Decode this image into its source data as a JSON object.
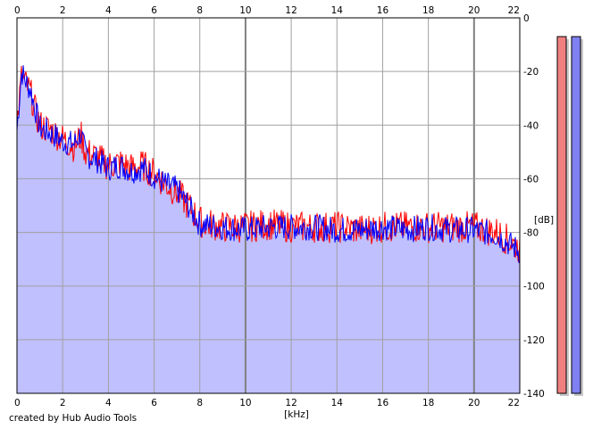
{
  "chart_data": {
    "type": "area",
    "xlabel": "[kHz]",
    "ylabel": "[dB]",
    "xlim": [
      0,
      22
    ],
    "ylim": [
      -140,
      0
    ],
    "x_ticks": [
      0,
      2,
      4,
      6,
      8,
      10,
      12,
      14,
      16,
      18,
      20,
      22
    ],
    "y_ticks": [
      0,
      -20,
      -40,
      -60,
      -80,
      -100,
      -120,
      -140
    ],
    "y_tick_labels": [
      "0",
      "-20",
      "-40",
      "-60",
      "-80",
      "-100",
      "-120",
      "-140"
    ],
    "grid": true,
    "fill_color": "#c0c0ff",
    "series": [
      {
        "color": "#ff0000",
        "x": [
          0,
          0.2,
          0.4,
          0.6,
          0.8,
          1,
          1.5,
          2,
          2.5,
          2.8,
          3,
          3.5,
          4,
          4.5,
          5,
          5.5,
          6,
          6.5,
          7,
          7.5,
          8,
          9,
          10,
          11,
          12,
          13,
          14,
          15,
          16,
          17,
          18,
          19,
          20,
          21,
          22
        ],
        "values": [
          -40,
          -22,
          -25,
          -28,
          -35,
          -40,
          -42,
          -45,
          -48,
          -44,
          -50,
          -52,
          -55,
          -54,
          -56,
          -55,
          -58,
          -62,
          -65,
          -70,
          -76,
          -78,
          -78,
          -77,
          -78,
          -78,
          -78,
          -79,
          -78,
          -78,
          -78,
          -78,
          -78,
          -80,
          -86
        ]
      },
      {
        "color": "#0000ff",
        "x": [
          0,
          0.2,
          0.4,
          0.6,
          0.8,
          1,
          1.5,
          2,
          2.5,
          2.8,
          3,
          3.5,
          4,
          4.5,
          5,
          5.5,
          6,
          6.5,
          7,
          7.5,
          8,
          9,
          10,
          11,
          12,
          13,
          14,
          15,
          16,
          17,
          18,
          19,
          20,
          21,
          22
        ],
        "values": [
          -42,
          -20,
          -24,
          -27,
          -34,
          -41,
          -43,
          -46,
          -47,
          -43,
          -51,
          -53,
          -56,
          -55,
          -57,
          -56,
          -59,
          -62,
          -64,
          -70,
          -77,
          -78,
          -79,
          -78,
          -78,
          -78,
          -79,
          -79,
          -78,
          -79,
          -78,
          -79,
          -79,
          -81,
          -87
        ]
      }
    ],
    "meters": [
      {
        "color": "#f08080",
        "level_db": -7
      },
      {
        "color": "#8080f0",
        "level_db": -7
      }
    ]
  },
  "credit": "created by Hub Audio Tools"
}
